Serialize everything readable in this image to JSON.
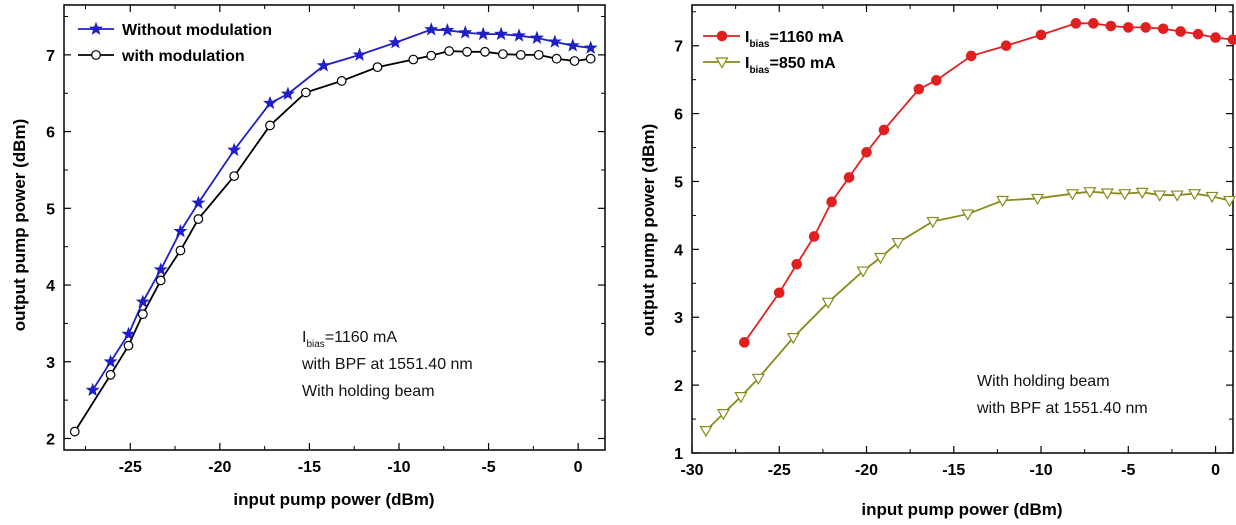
{
  "chart_data": [
    {
      "type": "line",
      "xlabel": "input pump power (dBm)",
      "ylabel": "output pump power (dBm)",
      "xlim": [
        -28.7,
        1.5
      ],
      "ylim": [
        1.85,
        7.65
      ],
      "xticks": [
        -25,
        -20,
        -15,
        -10,
        -5,
        0
      ],
      "yticks": [
        2,
        3,
        4,
        5,
        6,
        7
      ],
      "x_tick_labels": [
        "-25",
        "-20",
        "-15",
        "-10",
        "-5",
        "0"
      ],
      "y_tick_labels": [
        "2",
        "3",
        "4",
        "5",
        "6",
        "7"
      ],
      "grid": false,
      "legend_position": "top-left",
      "annotation_lines": [
        {
          "main": "I",
          "sub": "bias",
          "rest": "=1160 mA"
        },
        {
          "main": "with BPF at 1551.40 nm"
        },
        {
          "main": "With holding beam"
        }
      ],
      "series": [
        {
          "name": "Without modulation",
          "color": "#1f1fc8",
          "marker": "star",
          "x": [
            -27.1,
            -26.1,
            -25.1,
            -24.3,
            -23.3,
            -22.2,
            -21.2,
            -19.2,
            -17.2,
            -16.2,
            -14.2,
            -12.2,
            -10.2,
            -8.2,
            -7.3,
            -6.3,
            -5.3,
            -4.3,
            -3.3,
            -2.3,
            -1.3,
            -0.3,
            0.7
          ],
          "y": [
            2.63,
            3.0,
            3.36,
            3.78,
            4.2,
            4.7,
            5.07,
            5.76,
            6.37,
            6.49,
            6.86,
            7.0,
            7.16,
            7.33,
            7.32,
            7.29,
            7.27,
            7.27,
            7.25,
            7.22,
            7.17,
            7.12,
            7.09
          ]
        },
        {
          "name": "with modulation",
          "color": "#000000",
          "marker": "circle-open",
          "x": [
            -28.1,
            -26.1,
            -25.1,
            -24.3,
            -23.3,
            -22.2,
            -21.2,
            -19.2,
            -17.2,
            -15.2,
            -13.2,
            -11.2,
            -9.2,
            -8.2,
            -7.2,
            -6.2,
            -5.2,
            -4.2,
            -3.2,
            -2.2,
            -1.2,
            -0.2,
            0.7
          ],
          "y": [
            2.09,
            2.83,
            3.21,
            3.62,
            4.06,
            4.45,
            4.86,
            5.42,
            6.08,
            6.51,
            6.66,
            6.84,
            6.94,
            6.99,
            7.05,
            7.04,
            7.04,
            7.01,
            7.0,
            7.0,
            6.95,
            6.92,
            6.95
          ]
        }
      ]
    },
    {
      "type": "line",
      "xlabel": "input pump power (dBm)",
      "ylabel": "output pump power (dBm)",
      "xlim": [
        -30,
        1
      ],
      "ylim": [
        1,
        7.6
      ],
      "xticks": [
        -30,
        -25,
        -20,
        -15,
        -10,
        -5,
        0
      ],
      "yticks": [
        1,
        2,
        3,
        4,
        5,
        6,
        7
      ],
      "x_tick_labels": [
        "-30",
        "-25",
        "-20",
        "-15",
        "-10",
        "-5",
        "0"
      ],
      "y_tick_labels": [
        "1",
        "2",
        "3",
        "4",
        "5",
        "6",
        "7"
      ],
      "grid": false,
      "legend_position": "top-left",
      "annotation_lines": [
        {
          "main": "With holding beam"
        },
        {
          "main": "with BPF at 1551.40 nm"
        }
      ],
      "series": [
        {
          "legend_main": "I",
          "legend_sub": "bias",
          "legend_rest": "=1160 mA",
          "color": "#e02020",
          "marker": "circle-filled",
          "x": [
            -27,
            -25,
            -24,
            -23,
            -22,
            -21,
            -20,
            -19,
            -17,
            -16,
            -14,
            -12,
            -10,
            -8,
            -7,
            -6,
            -5,
            -4,
            -3,
            -2,
            -1,
            0,
            1
          ],
          "y": [
            2.63,
            3.36,
            3.78,
            4.19,
            4.7,
            5.06,
            5.43,
            5.76,
            6.36,
            6.49,
            6.85,
            7.0,
            7.16,
            7.33,
            7.33,
            7.29,
            7.27,
            7.27,
            7.25,
            7.21,
            7.17,
            7.12,
            7.09
          ]
        },
        {
          "legend_main": "I",
          "legend_sub": "bias",
          "legend_rest": "=850 mA",
          "color": "#8a8a1a",
          "marker": "triangle-down-open",
          "x": [
            -29.2,
            -28.2,
            -27.2,
            -26.2,
            -24.2,
            -22.2,
            -20.2,
            -19.2,
            -18.2,
            -16.2,
            -14.2,
            -12.2,
            -10.2,
            -8.2,
            -7.2,
            -6.2,
            -5.2,
            -4.2,
            -3.2,
            -2.2,
            -1.2,
            -0.2,
            0.8
          ],
          "y": [
            1.33,
            1.58,
            1.83,
            2.1,
            2.7,
            3.22,
            3.68,
            3.88,
            4.1,
            4.41,
            4.52,
            4.72,
            4.75,
            4.82,
            4.85,
            4.83,
            4.82,
            4.84,
            4.8,
            4.8,
            4.82,
            4.78,
            4.72
          ]
        }
      ]
    }
  ]
}
